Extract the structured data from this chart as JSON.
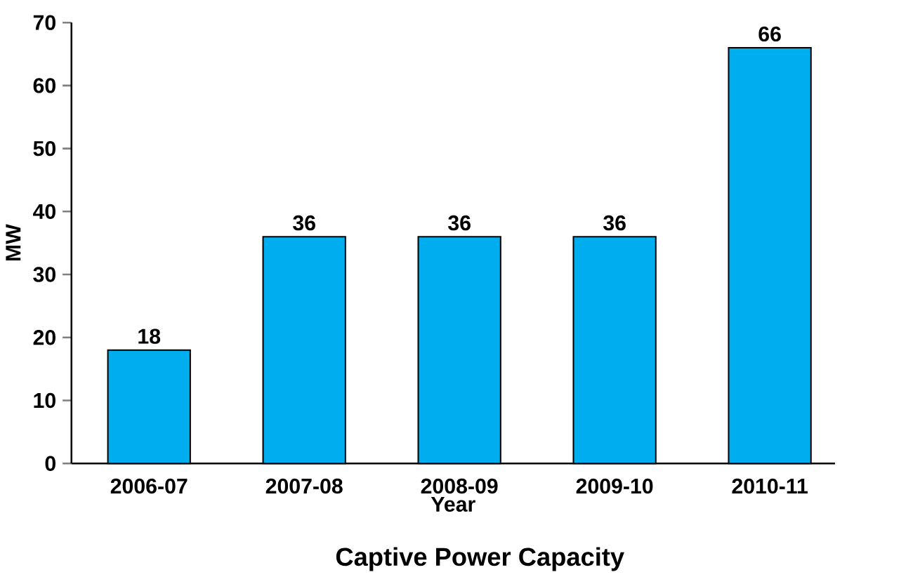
{
  "chart_data": {
    "type": "bar",
    "title": "Captive Power Capacity",
    "xlabel": "Year",
    "ylabel": "MW",
    "categories": [
      "2006-07",
      "2007-08",
      "2008-09",
      "2009-10",
      "2010-11"
    ],
    "values": [
      18,
      36,
      36,
      36,
      66
    ],
    "color": "#00adee",
    "ylim": [
      0,
      70
    ],
    "yticks": [
      0,
      10,
      20,
      30,
      40,
      50,
      60,
      70
    ],
    "data_labels": true
  }
}
